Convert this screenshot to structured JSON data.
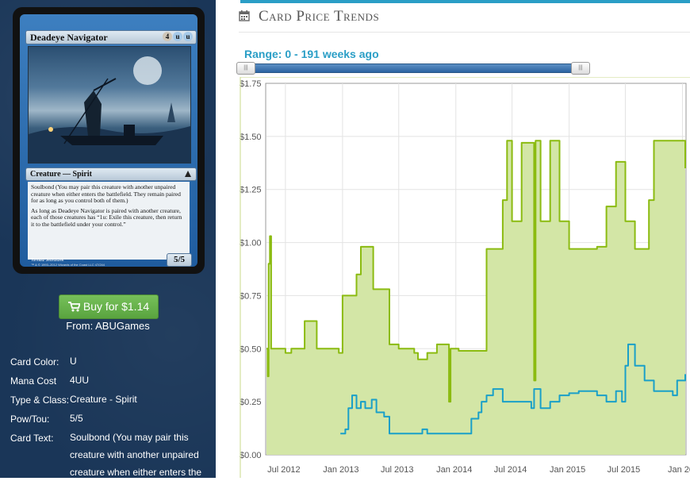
{
  "card": {
    "name": "Deadeye Navigator",
    "mana_symbols": [
      "4",
      "u",
      "u"
    ],
    "type_line": "Creature — Spirit",
    "text_p1": "Soulbond (You may pair this creature with another unpaired creature when either enters the battlefield. They remain paired for as long as you control both of them.)",
    "text_p2": "As long as Deadeye Navigator is paired with another creature, each of those creatures has “1u: Exile this creature, then return it to the battlefield under your control.”",
    "power_toughness": "5/5",
    "artist": "Tomasz Jedruszek",
    "copyright": "™ & © 1993–2012 Wizards of the Coast LLC 47/244"
  },
  "buy": {
    "label": "Buy for $1.14",
    "from_label": "From:",
    "store": "ABUGames"
  },
  "attributes": [
    {
      "label": "Card Color:",
      "value": "U"
    },
    {
      "label": "Mana Cost",
      "value": "4UU"
    },
    {
      "label": "Type & Class:",
      "value": "Creature - Spirit"
    },
    {
      "label": "Pow/Tou:",
      "value": "5/5"
    },
    {
      "label": "Card Text:",
      "value": "Soulbond (You may pair this creature with another unpaired creature when either enters the"
    }
  ],
  "section_title": "Card Price Trends",
  "range_label": "Range: 0 - 191 weeks ago",
  "slider": {
    "start_fraction": 0.0,
    "end_fraction": 1.0
  },
  "colors": {
    "accent": "#2a9ec6",
    "green_series": "#8bbb11",
    "blue_series": "#1aa0c8",
    "buy_button": "#65b04a",
    "panel": "#1a3658"
  },
  "chart_data": {
    "type": "line",
    "ylabel": "",
    "xlabel": "",
    "y_ticks": [
      "$1.75",
      "$1.50",
      "$1.25",
      "$1.00",
      "$0.75",
      "$0.50",
      "$0.25",
      "$0.00"
    ],
    "x_ticks": [
      "Jul 2012",
      "Jan 2013",
      "Jul 2013",
      "Jan 2014",
      "Jul 2014",
      "Jan 2015",
      "Jul 2015",
      "Jan 20"
    ],
    "ylim": [
      0,
      1.75
    ],
    "xlim": [
      "2012-05-01",
      "2016-01-10"
    ],
    "grid": true,
    "series": [
      {
        "points": [
          [
            "2012-05-01",
            0.5
          ],
          [
            "2012-05-05",
            0.37
          ],
          [
            "2012-05-08",
            0.9
          ],
          [
            "2012-05-12",
            1.03
          ],
          [
            "2012-05-16",
            0.5
          ],
          [
            "2012-06-01",
            0.5
          ],
          [
            "2012-07-01",
            0.48
          ],
          [
            "2012-07-20",
            0.5
          ],
          [
            "2012-08-15",
            0.5
          ],
          [
            "2012-09-01",
            0.63
          ],
          [
            "2012-10-01",
            0.63
          ],
          [
            "2012-10-10",
            0.5
          ],
          [
            "2012-11-15",
            0.5
          ],
          [
            "2012-12-20",
            0.48
          ],
          [
            "2013-01-01",
            0.75
          ],
          [
            "2013-02-01",
            0.75
          ],
          [
            "2013-02-15",
            0.85
          ],
          [
            "2013-03-01",
            0.98
          ],
          [
            "2013-04-05",
            0.98
          ],
          [
            "2013-04-10",
            0.78
          ],
          [
            "2013-05-20",
            0.78
          ],
          [
            "2013-06-01",
            0.52
          ],
          [
            "2013-07-01",
            0.5
          ],
          [
            "2013-08-20",
            0.48
          ],
          [
            "2013-09-01",
            0.45
          ],
          [
            "2013-10-01",
            0.48
          ],
          [
            "2013-11-01",
            0.52
          ],
          [
            "2013-12-01",
            0.52
          ],
          [
            "2013-12-10",
            0.25
          ],
          [
            "2013-12-15",
            0.5
          ],
          [
            "2014-01-10",
            0.49
          ],
          [
            "2014-02-01",
            0.49
          ],
          [
            "2014-03-01",
            0.49
          ],
          [
            "2014-04-01",
            0.49
          ],
          [
            "2014-04-10",
            0.97
          ],
          [
            "2014-05-01",
            0.97
          ],
          [
            "2014-06-01",
            1.2
          ],
          [
            "2014-06-15",
            1.48
          ],
          [
            "2014-07-01",
            1.1
          ],
          [
            "2014-08-01",
            1.47
          ],
          [
            "2014-09-10",
            0.35
          ],
          [
            "2014-09-15",
            1.48
          ],
          [
            "2014-10-01",
            1.1
          ],
          [
            "2014-11-01",
            1.48
          ],
          [
            "2014-12-01",
            1.1
          ],
          [
            "2015-01-01",
            0.97
          ],
          [
            "2015-03-01",
            0.97
          ],
          [
            "2015-04-01",
            0.98
          ],
          [
            "2015-04-15",
            0.98
          ],
          [
            "2015-05-01",
            1.17
          ],
          [
            "2015-06-01",
            1.38
          ],
          [
            "2015-07-01",
            1.1
          ],
          [
            "2015-08-01",
            0.97
          ],
          [
            "2015-09-01",
            0.97
          ],
          [
            "2015-09-15",
            1.2
          ],
          [
            "2015-10-01",
            1.48
          ],
          [
            "2015-11-01",
            1.48
          ],
          [
            "2015-12-15",
            1.48
          ],
          [
            "2016-01-10",
            1.35
          ]
        ]
      },
      {
        "points": [
          [
            "2012-12-25",
            0.1
          ],
          [
            "2013-01-10",
            0.12
          ],
          [
            "2013-01-20",
            0.22
          ],
          [
            "2013-02-01",
            0.28
          ],
          [
            "2013-02-15",
            0.22
          ],
          [
            "2013-03-01",
            0.25
          ],
          [
            "2013-03-15",
            0.22
          ],
          [
            "2013-04-05",
            0.26
          ],
          [
            "2013-04-20",
            0.2
          ],
          [
            "2013-05-15",
            0.18
          ],
          [
            "2013-06-01",
            0.1
          ],
          [
            "2013-07-01",
            0.1
          ],
          [
            "2013-08-01",
            0.1
          ],
          [
            "2013-09-01",
            0.1
          ],
          [
            "2013-09-15",
            0.12
          ],
          [
            "2013-10-01",
            0.1
          ],
          [
            "2013-11-01",
            0.1
          ],
          [
            "2013-12-01",
            0.1
          ],
          [
            "2014-01-01",
            0.1
          ],
          [
            "2014-02-01",
            0.1
          ],
          [
            "2014-02-20",
            0.17
          ],
          [
            "2014-03-15",
            0.2
          ],
          [
            "2014-03-25",
            0.25
          ],
          [
            "2014-04-10",
            0.28
          ],
          [
            "2014-05-01",
            0.31
          ],
          [
            "2014-06-01",
            0.25
          ],
          [
            "2014-07-01",
            0.25
          ],
          [
            "2014-08-01",
            0.25
          ],
          [
            "2014-08-20",
            0.25
          ],
          [
            "2014-09-01",
            0.22
          ],
          [
            "2014-09-10",
            0.31
          ],
          [
            "2014-10-01",
            0.22
          ],
          [
            "2014-11-01",
            0.25
          ],
          [
            "2014-12-01",
            0.28
          ],
          [
            "2015-01-01",
            0.29
          ],
          [
            "2015-02-01",
            0.3
          ],
          [
            "2015-04-01",
            0.28
          ],
          [
            "2015-05-01",
            0.25
          ],
          [
            "2015-06-01",
            0.3
          ],
          [
            "2015-06-20",
            0.25
          ],
          [
            "2015-07-01",
            0.42
          ],
          [
            "2015-07-10",
            0.52
          ],
          [
            "2015-08-01",
            0.42
          ],
          [
            "2015-09-01",
            0.35
          ],
          [
            "2015-10-01",
            0.3
          ],
          [
            "2015-11-01",
            0.3
          ],
          [
            "2015-12-01",
            0.28
          ],
          [
            "2015-12-15",
            0.35
          ],
          [
            "2016-01-10",
            0.38
          ]
        ]
      }
    ]
  }
}
